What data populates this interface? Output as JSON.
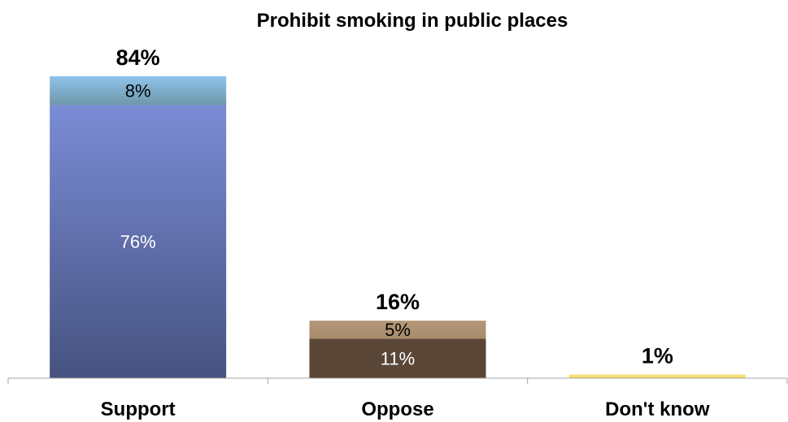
{
  "chart_data": {
    "type": "bar",
    "stacked": true,
    "title": "Prohibit smoking in public places",
    "categories": [
      "Support",
      "Oppose",
      "Don't know"
    ],
    "totals": [
      84,
      16,
      1
    ],
    "total_labels": [
      "84%",
      "16%",
      "1%"
    ],
    "stacks": [
      {
        "category": "Support",
        "segments": [
          {
            "value": 76,
            "label": "76%",
            "color_top": "#7a8cd6",
            "color_bottom": "#46527f",
            "text_color": "#ffffff"
          },
          {
            "value": 8,
            "label": "8%",
            "color_top": "#8ec3ea",
            "color_bottom": "#6f97ab",
            "text_color": "#000000"
          }
        ]
      },
      {
        "category": "Oppose",
        "segments": [
          {
            "value": 11,
            "label": "11%",
            "color_top": "#5a4636",
            "color_bottom": "#5a4636",
            "text_color": "#ffffff"
          },
          {
            "value": 5,
            "label": "5%",
            "color_top": "#b39878",
            "color_bottom": "#a88a6c",
            "text_color": "#000000"
          }
        ]
      },
      {
        "category": "Don't know",
        "segments": [
          {
            "value": 1,
            "label": "",
            "color_top": "#f5e27a",
            "color_bottom": "#f0d860",
            "text_color": "#000000"
          }
        ]
      }
    ],
    "xlabel": "",
    "ylabel": "",
    "ylim": [
      0,
      84
    ],
    "grid": false,
    "legend": "none",
    "axis_color": "#a6a6a6"
  }
}
